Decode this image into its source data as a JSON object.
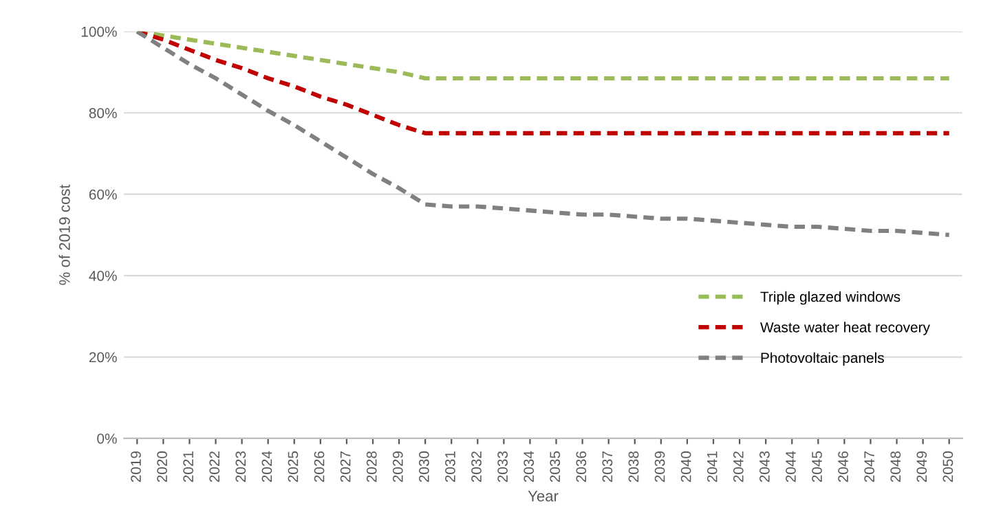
{
  "chart_data": {
    "type": "line",
    "xlabel": "Year",
    "ylabel": "% of 2019 cost",
    "categories": [
      "2019",
      "2020",
      "2021",
      "2022",
      "2023",
      "2024",
      "2025",
      "2026",
      "2027",
      "2028",
      "2029",
      "2030",
      "2031",
      "2032",
      "2033",
      "2034",
      "2035",
      "2036",
      "2037",
      "2038",
      "2039",
      "2040",
      "2041",
      "2042",
      "2043",
      "2044",
      "2045",
      "2046",
      "2047",
      "2048",
      "2049",
      "2050"
    ],
    "series": [
      {
        "name": "Triple glazed windows",
        "color": "#9bbb59",
        "values": [
          100,
          99,
          98,
          97,
          96,
          95,
          94,
          93,
          92,
          91,
          90,
          88.5,
          88.5,
          88.5,
          88.5,
          88.5,
          88.5,
          88.5,
          88.5,
          88.5,
          88.5,
          88.5,
          88.5,
          88.5,
          88.5,
          88.5,
          88.5,
          88.5,
          88.5,
          88.5,
          88.5,
          88.5
        ]
      },
      {
        "name": "Waste water heat recovery",
        "color": "#c00000",
        "values": [
          100,
          98,
          95.5,
          93,
          91,
          88.5,
          86.5,
          84,
          82,
          79.5,
          77,
          75,
          75,
          75,
          75,
          75,
          75,
          75,
          75,
          75,
          75,
          75,
          75,
          75,
          75,
          75,
          75,
          75,
          75,
          75,
          75,
          75
        ]
      },
      {
        "name": "Photovoltaic panels",
        "color": "#808080",
        "values": [
          100,
          96,
          92,
          88.5,
          84.5,
          80.5,
          77,
          73,
          69,
          65,
          61.5,
          57.5,
          57,
          57,
          56.5,
          56,
          55.5,
          55,
          55,
          54.5,
          54,
          54,
          53.5,
          53,
          52.5,
          52,
          52,
          51.5,
          51,
          51,
          50.5,
          50
        ]
      }
    ],
    "ylim": [
      0,
      100
    ],
    "yticks": [
      {
        "value": 0,
        "label": "0%"
      },
      {
        "value": 20,
        "label": "20%"
      },
      {
        "value": 40,
        "label": "40%"
      },
      {
        "value": 60,
        "label": "60%"
      },
      {
        "value": 80,
        "label": "80%"
      },
      {
        "value": 100,
        "label": "100%"
      }
    ],
    "grid": "y",
    "legend": "right",
    "line_style": "dashed",
    "marker": "none"
  }
}
